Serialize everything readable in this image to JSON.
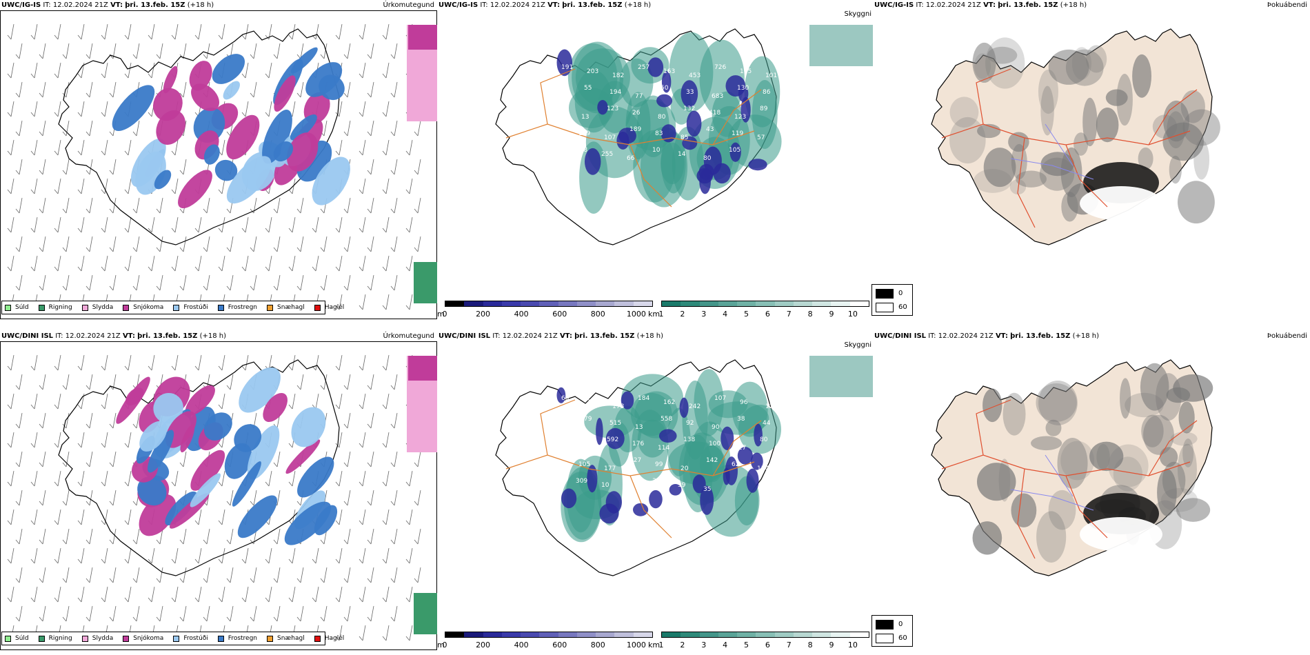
{
  "rows": [
    {
      "model": "UWC/IG-IS",
      "it_label": "IT:",
      "it_value": "12.02.2024 21Z",
      "vt_label": "VT:",
      "vt_value": "þri. 13.feb. 15Z",
      "lead": "(+18 h)"
    },
    {
      "model": "UWC/DINI ISL",
      "it_label": "IT:",
      "it_value": "12.02.2024 21Z",
      "vt_label": "VT:",
      "vt_value": "þri. 13.feb. 15Z",
      "lead": "(+18 h)"
    }
  ],
  "panels": {
    "precip_type": "Úrkomutegund",
    "cloud": "Skyggni",
    "fog": "Þokuábendi"
  },
  "precip_legend": [
    {
      "label": "Súld",
      "color": "#90ee90"
    },
    {
      "label": "Rigning",
      "color": "#3a9a6a"
    },
    {
      "label": "Slydda",
      "color": "#f0a8d8"
    },
    {
      "label": "Snjókoma",
      "color": "#c03c9a"
    },
    {
      "label": "Frostúði",
      "color": "#9ac8f0"
    },
    {
      "label": "Frostregn",
      "color": "#3a7ac8"
    },
    {
      "label": "Snæhagl",
      "color": "#f0a030"
    },
    {
      "label": "Haglél",
      "color": "#e01010"
    }
  ],
  "cloud_base_bar": {
    "unit": "m",
    "ticks": [
      "0",
      "200",
      "400",
      "600",
      "800",
      "1000"
    ],
    "colors": [
      "#000000",
      "#1a1a7a",
      "#2a2a9a",
      "#3a3aaa",
      "#4a4ab0",
      "#6060b8",
      "#7878c0",
      "#9090c8",
      "#a8a8d0",
      "#c0c0dc",
      "#d8d8ea"
    ]
  },
  "visibility_bar": {
    "unit": "km",
    "ticks": [
      "1",
      "2",
      "3",
      "4",
      "5",
      "6",
      "7",
      "8",
      "9",
      "10"
    ],
    "colors": [
      "#1a7a6a",
      "#2e8a7a",
      "#44968a",
      "#5aa498",
      "#70b2a6",
      "#88c0b6",
      "#a0ccc4",
      "#b8d8d2",
      "#d0e6e2",
      "#e8f4f2",
      "#ffffff"
    ]
  },
  "fog_legend": {
    "high": "0",
    "low": "60",
    "high_color": "#000000",
    "low_color": "#ffffff"
  },
  "cloud_labels_top": [
    "191",
    "203",
    "182",
    "257",
    "163",
    "453",
    "726",
    "105",
    "101",
    "55",
    "194",
    "77",
    "50",
    "33",
    "683",
    "130",
    "86",
    "13",
    "123",
    "26",
    "80",
    "132",
    "418",
    "123",
    "89",
    "109",
    "107",
    "189",
    "83",
    "85",
    "43",
    "119",
    "57",
    "128",
    "255",
    "66",
    "10",
    "14",
    "80",
    "105"
  ],
  "cloud_labels_bottom": [
    "65",
    "352",
    "178",
    "184",
    "162",
    "242",
    "107",
    "96",
    "120",
    "79",
    "515",
    "13",
    "558",
    "92",
    "90",
    "38",
    "44",
    "196",
    "592",
    "176",
    "114",
    "138",
    "100",
    "227",
    "80",
    "105",
    "177",
    "127",
    "99",
    "20",
    "142",
    "62",
    "134",
    "309",
    "10",
    "53",
    "36",
    "39",
    "35"
  ]
}
